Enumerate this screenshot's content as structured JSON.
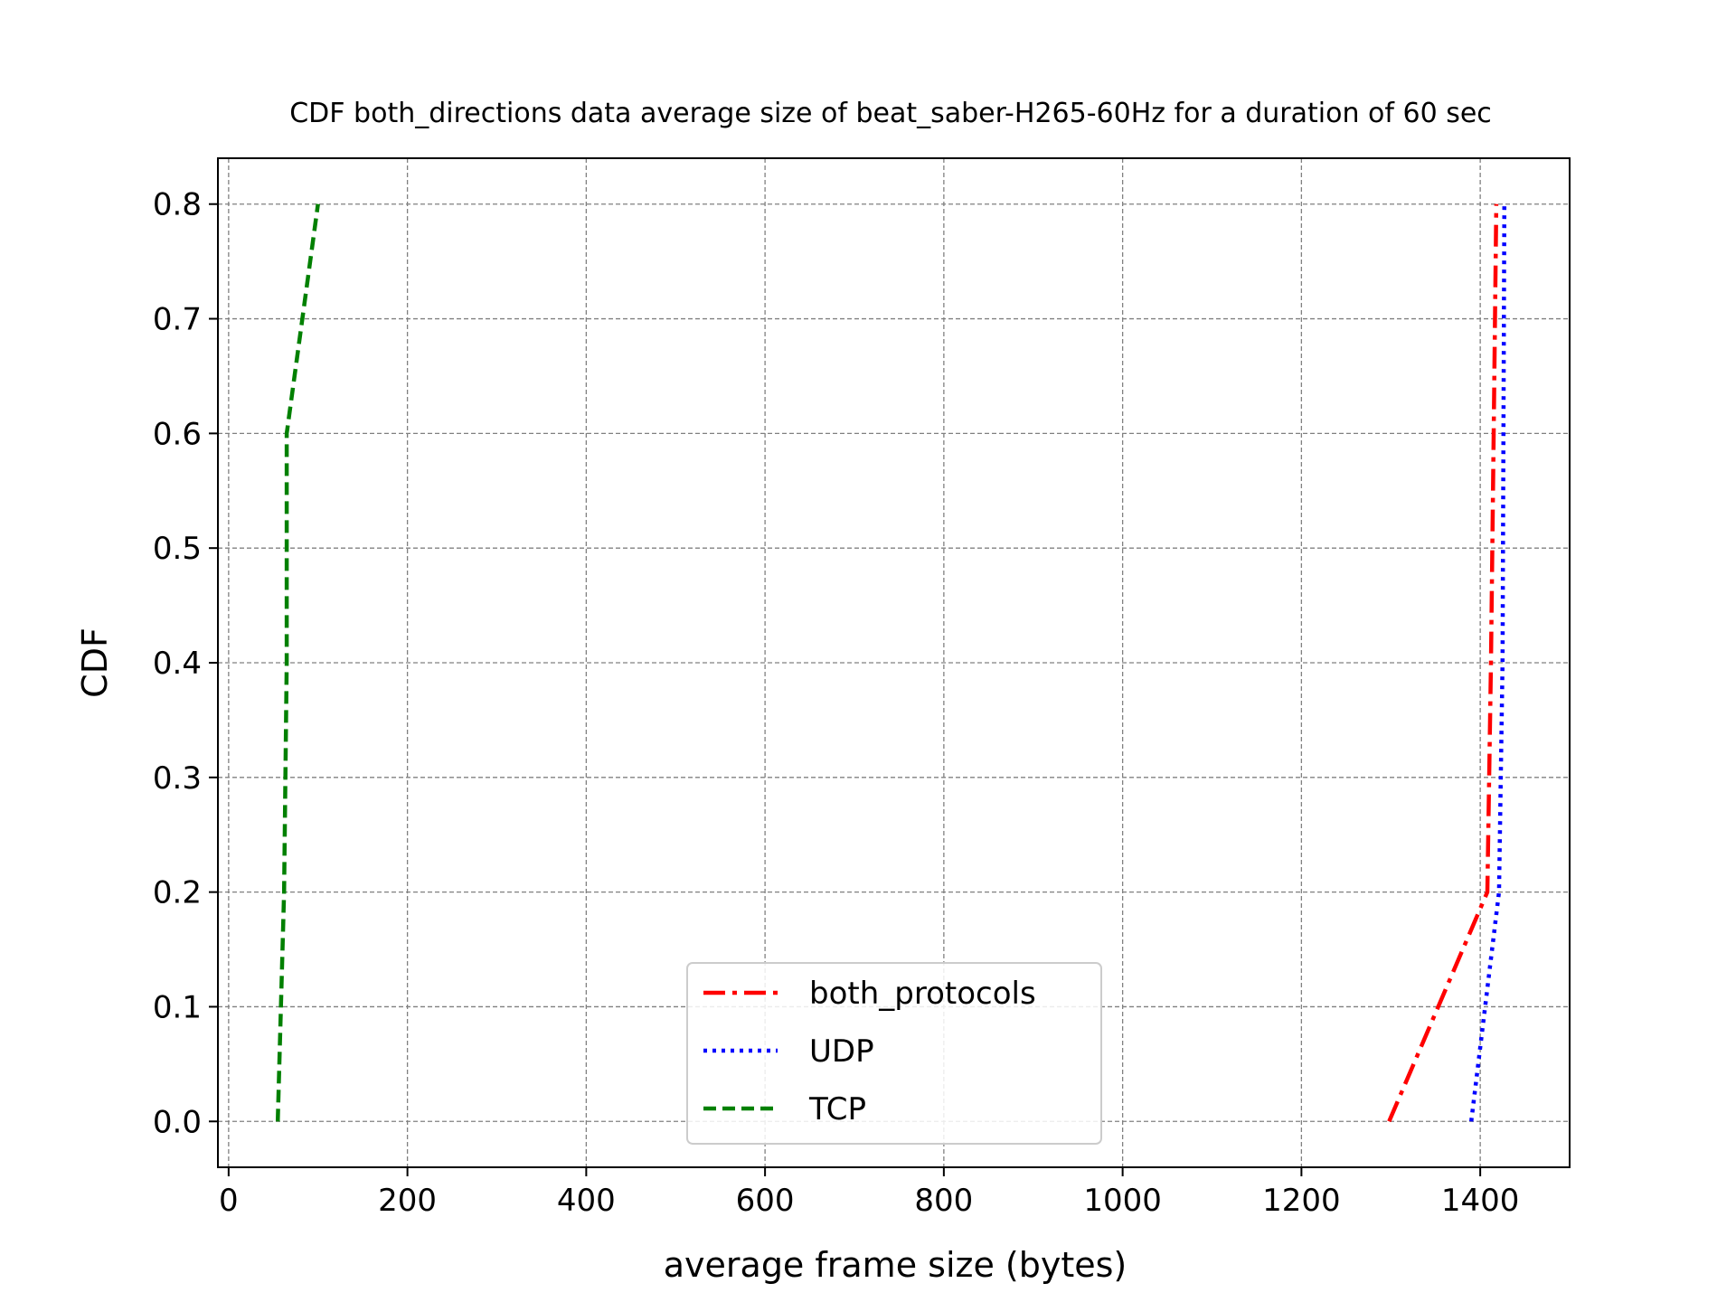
{
  "chart_data": {
    "type": "line",
    "title": "CDF both_directions data average size of beat_saber-H265-60Hz for a duration of 60 sec",
    "xlabel": "average frame size (bytes)",
    "ylabel": "CDF",
    "xlim": [
      -12,
      1500
    ],
    "ylim": [
      -0.04,
      0.84
    ],
    "xticks": [
      0,
      200,
      400,
      600,
      800,
      1000,
      1200,
      1400
    ],
    "yticks": [
      0.0,
      0.1,
      0.2,
      0.3,
      0.4,
      0.5,
      0.6,
      0.7,
      0.8
    ],
    "xtick_labels": [
      "0",
      "200",
      "400",
      "600",
      "800",
      "1000",
      "1200",
      "1400"
    ],
    "ytick_labels": [
      "0.0",
      "0.1",
      "0.2",
      "0.3",
      "0.4",
      "0.5",
      "0.6",
      "0.7",
      "0.8"
    ],
    "grid": true,
    "legend_position": "lower center",
    "series": [
      {
        "name": "both_protocols",
        "color": "#ff0000",
        "style": "dashdot",
        "x": [
          1298,
          1408,
          1412,
          1415,
          1418
        ],
        "y": [
          0.0,
          0.2,
          0.4,
          0.6,
          0.8
        ]
      },
      {
        "name": "UDP",
        "color": "#0000ff",
        "style": "dotted",
        "x": [
          1390,
          1421,
          1425,
          1426,
          1427
        ],
        "y": [
          0.0,
          0.2,
          0.4,
          0.6,
          0.8
        ]
      },
      {
        "name": "TCP",
        "color": "#008000",
        "style": "dashed",
        "x": [
          55,
          62,
          65,
          65,
          100
        ],
        "y": [
          0.0,
          0.2,
          0.4,
          0.6,
          0.8
        ]
      }
    ]
  }
}
